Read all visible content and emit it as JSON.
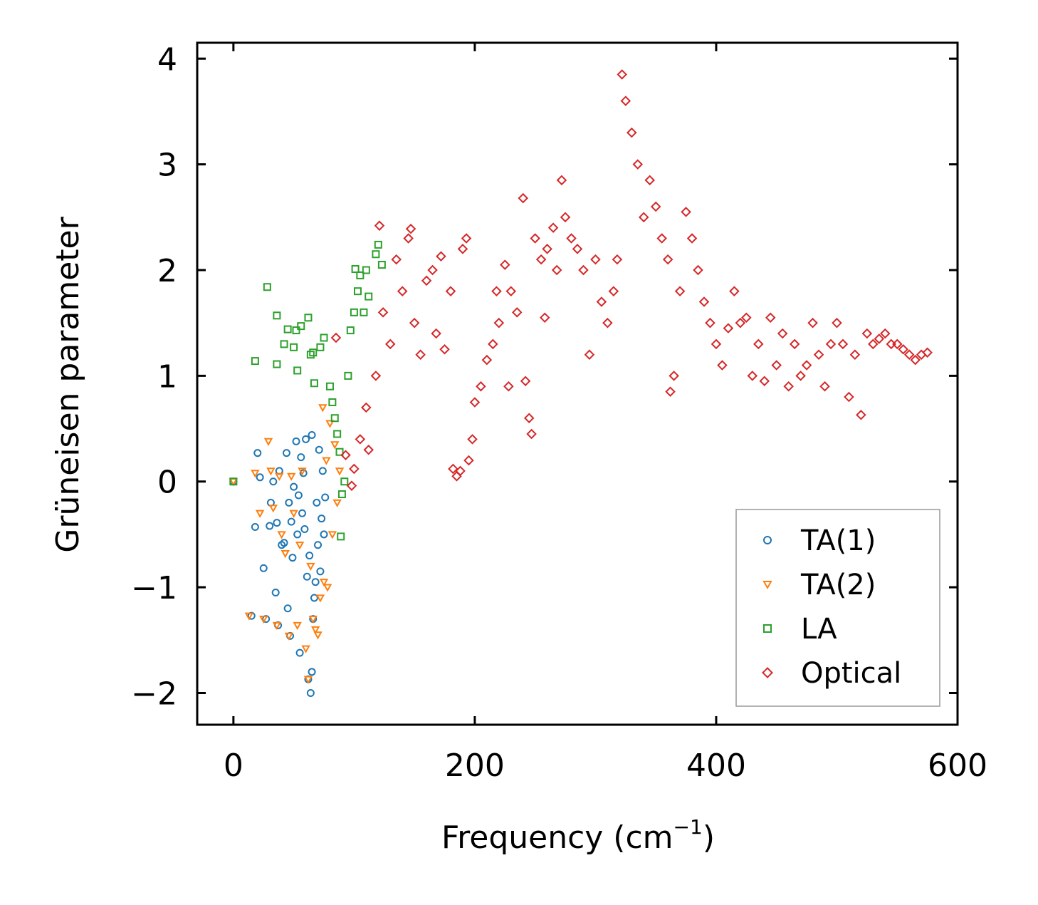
{
  "chart_data": {
    "type": "scatter",
    "title": "",
    "xlabel": "Frequency (cm",
    "xlabel_sup": "−1",
    "xlabel_close": ")",
    "ylabel": "Grüneisen parameter",
    "xlim": [
      -30,
      600
    ],
    "ylim": [
      -2.3,
      4.15
    ],
    "xticks": [
      0,
      200,
      400,
      600
    ],
    "xtick_labels": [
      "0",
      "200",
      "400",
      "600"
    ],
    "yticks": [
      -2,
      -1,
      0,
      1,
      2,
      3,
      4
    ],
    "ytick_labels": [
      "−2",
      "−1",
      "0",
      "1",
      "2",
      "3",
      "4"
    ],
    "grid": false,
    "legend_position": "lower-right",
    "colors": {
      "TA(1)": "#1f77b4",
      "TA(2)": "#ff7f0e",
      "LA": "#2ca02c",
      "Optical": "#d62728"
    },
    "series": [
      {
        "name": "TA(1)",
        "marker": "circle",
        "points": [
          [
            0,
            0
          ],
          [
            15,
            -1.27
          ],
          [
            18,
            -0.43
          ],
          [
            20,
            0.27
          ],
          [
            22,
            0.04
          ],
          [
            25,
            -0.82
          ],
          [
            27,
            -1.3
          ],
          [
            30,
            -0.42
          ],
          [
            31,
            -0.2
          ],
          [
            33,
            0.0
          ],
          [
            35,
            -1.05
          ],
          [
            36,
            -0.39
          ],
          [
            37,
            -1.36
          ],
          [
            38,
            0.1
          ],
          [
            40,
            -0.6
          ],
          [
            42,
            -0.58
          ],
          [
            44,
            0.27
          ],
          [
            45,
            -1.2
          ],
          [
            46,
            -0.2
          ],
          [
            47,
            -1.46
          ],
          [
            48,
            -0.38
          ],
          [
            49,
            -0.72
          ],
          [
            50,
            -0.05
          ],
          [
            52,
            0.38
          ],
          [
            53,
            -0.5
          ],
          [
            54,
            -0.13
          ],
          [
            55,
            -1.62
          ],
          [
            56,
            0.23
          ],
          [
            57,
            -0.3
          ],
          [
            58,
            0.08
          ],
          [
            59,
            -0.45
          ],
          [
            60,
            0.4
          ],
          [
            61,
            -0.9
          ],
          [
            62,
            -1.87
          ],
          [
            63,
            -0.7
          ],
          [
            64,
            -2.0
          ],
          [
            65,
            0.44
          ],
          [
            65,
            -1.8
          ],
          [
            66,
            -1.3
          ],
          [
            67,
            -1.1
          ],
          [
            68,
            -0.95
          ],
          [
            69,
            -0.2
          ],
          [
            70,
            -0.6
          ],
          [
            71,
            0.3
          ],
          [
            72,
            -0.85
          ],
          [
            73,
            -0.35
          ],
          [
            74,
            0.1
          ],
          [
            75,
            -0.5
          ],
          [
            76,
            -0.15
          ]
        ]
      },
      {
        "name": "TA(2)",
        "marker": "triangle",
        "points": [
          [
            0,
            0
          ],
          [
            13,
            -1.27
          ],
          [
            18,
            0.08
          ],
          [
            22,
            -0.3
          ],
          [
            25,
            -1.3
          ],
          [
            29,
            0.38
          ],
          [
            31,
            0.1
          ],
          [
            33,
            -0.25
          ],
          [
            36,
            -1.36
          ],
          [
            38,
            0.05
          ],
          [
            40,
            -0.5
          ],
          [
            43,
            -0.68
          ],
          [
            46,
            -1.46
          ],
          [
            48,
            0.05
          ],
          [
            50,
            -0.3
          ],
          [
            53,
            -1.36
          ],
          [
            55,
            -0.6
          ],
          [
            57,
            0.1
          ],
          [
            60,
            -1.58
          ],
          [
            62,
            -1.87
          ],
          [
            64,
            -0.8
          ],
          [
            66,
            -1.3
          ],
          [
            68,
            -1.4
          ],
          [
            70,
            -1.45
          ],
          [
            72,
            -1.1
          ],
          [
            74,
            0.7
          ],
          [
            75,
            -0.95
          ],
          [
            77,
            0.2
          ],
          [
            78,
            -1.0
          ],
          [
            80,
            0.55
          ],
          [
            82,
            -0.5
          ],
          [
            84,
            0.35
          ],
          [
            86,
            -0.2
          ],
          [
            88,
            0.1
          ]
        ]
      },
      {
        "name": "LA",
        "marker": "square",
        "points": [
          [
            0,
            0
          ],
          [
            18,
            1.14
          ],
          [
            28,
            1.84
          ],
          [
            36,
            1.11
          ],
          [
            36,
            1.57
          ],
          [
            42,
            1.3
          ],
          [
            45,
            1.44
          ],
          [
            50,
            1.27
          ],
          [
            52,
            1.43
          ],
          [
            53,
            1.05
          ],
          [
            56,
            1.47
          ],
          [
            62,
            1.55
          ],
          [
            64,
            1.2
          ],
          [
            66,
            1.22
          ],
          [
            67,
            0.93
          ],
          [
            72,
            1.27
          ],
          [
            75,
            1.36
          ],
          [
            80,
            0.9
          ],
          [
            82,
            0.75
          ],
          [
            84,
            0.6
          ],
          [
            86,
            0.45
          ],
          [
            88,
            0.28
          ],
          [
            89,
            -0.52
          ],
          [
            90,
            -0.12
          ],
          [
            92,
            0.0
          ],
          [
            95,
            1.0
          ],
          [
            97,
            1.43
          ],
          [
            100,
            1.6
          ],
          [
            101,
            2.01
          ],
          [
            103,
            1.8
          ],
          [
            105,
            1.95
          ],
          [
            108,
            1.6
          ],
          [
            110,
            2.0
          ],
          [
            112,
            1.75
          ],
          [
            118,
            2.15
          ],
          [
            120,
            2.24
          ],
          [
            123,
            2.05
          ]
        ]
      },
      {
        "name": "Optical",
        "marker": "diamond",
        "points": [
          [
            85,
            1.36
          ],
          [
            93,
            0.25
          ],
          [
            98,
            -0.04
          ],
          [
            100,
            0.12
          ],
          [
            105,
            0.4
          ],
          [
            110,
            0.7
          ],
          [
            112,
            0.3
          ],
          [
            118,
            1.0
          ],
          [
            121,
            2.42
          ],
          [
            124,
            1.6
          ],
          [
            130,
            1.3
          ],
          [
            135,
            2.1
          ],
          [
            140,
            1.8
          ],
          [
            145,
            2.3
          ],
          [
            147,
            2.39
          ],
          [
            150,
            1.5
          ],
          [
            155,
            1.2
          ],
          [
            160,
            1.9
          ],
          [
            165,
            2.0
          ],
          [
            168,
            1.4
          ],
          [
            172,
            2.13
          ],
          [
            175,
            1.25
          ],
          [
            180,
            1.8
          ],
          [
            182,
            0.12
          ],
          [
            185,
            0.05
          ],
          [
            188,
            0.1
          ],
          [
            190,
            2.2
          ],
          [
            193,
            2.3
          ],
          [
            195,
            0.2
          ],
          [
            198,
            0.4
          ],
          [
            200,
            0.75
          ],
          [
            205,
            0.9
          ],
          [
            210,
            1.15
          ],
          [
            215,
            1.3
          ],
          [
            218,
            1.8
          ],
          [
            220,
            1.5
          ],
          [
            225,
            2.05
          ],
          [
            228,
            0.9
          ],
          [
            230,
            1.8
          ],
          [
            235,
            1.6
          ],
          [
            240,
            2.68
          ],
          [
            242,
            0.95
          ],
          [
            245,
            0.6
          ],
          [
            247,
            0.45
          ],
          [
            250,
            2.3
          ],
          [
            255,
            2.1
          ],
          [
            258,
            1.55
          ],
          [
            260,
            2.2
          ],
          [
            265,
            2.4
          ],
          [
            268,
            2.0
          ],
          [
            272,
            2.85
          ],
          [
            275,
            2.5
          ],
          [
            280,
            2.3
          ],
          [
            285,
            2.2
          ],
          [
            290,
            2.0
          ],
          [
            295,
            1.2
          ],
          [
            300,
            2.1
          ],
          [
            305,
            1.7
          ],
          [
            310,
            1.5
          ],
          [
            315,
            1.8
          ],
          [
            318,
            2.1
          ],
          [
            322,
            3.85
          ],
          [
            325,
            3.6
          ],
          [
            330,
            3.3
          ],
          [
            335,
            3.0
          ],
          [
            340,
            2.5
          ],
          [
            345,
            2.85
          ],
          [
            350,
            2.6
          ],
          [
            355,
            2.3
          ],
          [
            360,
            2.1
          ],
          [
            362,
            0.85
          ],
          [
            365,
            1.0
          ],
          [
            370,
            1.8
          ],
          [
            375,
            2.55
          ],
          [
            380,
            2.3
          ],
          [
            385,
            2.0
          ],
          [
            390,
            1.7
          ],
          [
            395,
            1.5
          ],
          [
            400,
            1.3
          ],
          [
            405,
            1.1
          ],
          [
            410,
            1.45
          ],
          [
            415,
            1.8
          ],
          [
            420,
            1.5
          ],
          [
            425,
            1.55
          ],
          [
            430,
            1.0
          ],
          [
            435,
            1.3
          ],
          [
            440,
            0.95
          ],
          [
            445,
            1.55
          ],
          [
            450,
            1.1
          ],
          [
            455,
            1.4
          ],
          [
            460,
            0.9
          ],
          [
            465,
            1.3
          ],
          [
            470,
            1.0
          ],
          [
            475,
            1.1
          ],
          [
            480,
            1.5
          ],
          [
            485,
            1.2
          ],
          [
            490,
            0.9
          ],
          [
            495,
            1.3
          ],
          [
            500,
            1.5
          ],
          [
            505,
            1.3
          ],
          [
            510,
            0.8
          ],
          [
            515,
            1.2
          ],
          [
            520,
            0.63
          ],
          [
            525,
            1.4
          ],
          [
            530,
            1.3
          ],
          [
            535,
            1.35
          ],
          [
            540,
            1.4
          ],
          [
            545,
            1.3
          ],
          [
            550,
            1.3
          ],
          [
            555,
            1.25
          ],
          [
            560,
            1.2
          ],
          [
            565,
            1.15
          ],
          [
            570,
            1.2
          ],
          [
            575,
            1.22
          ]
        ]
      }
    ]
  }
}
